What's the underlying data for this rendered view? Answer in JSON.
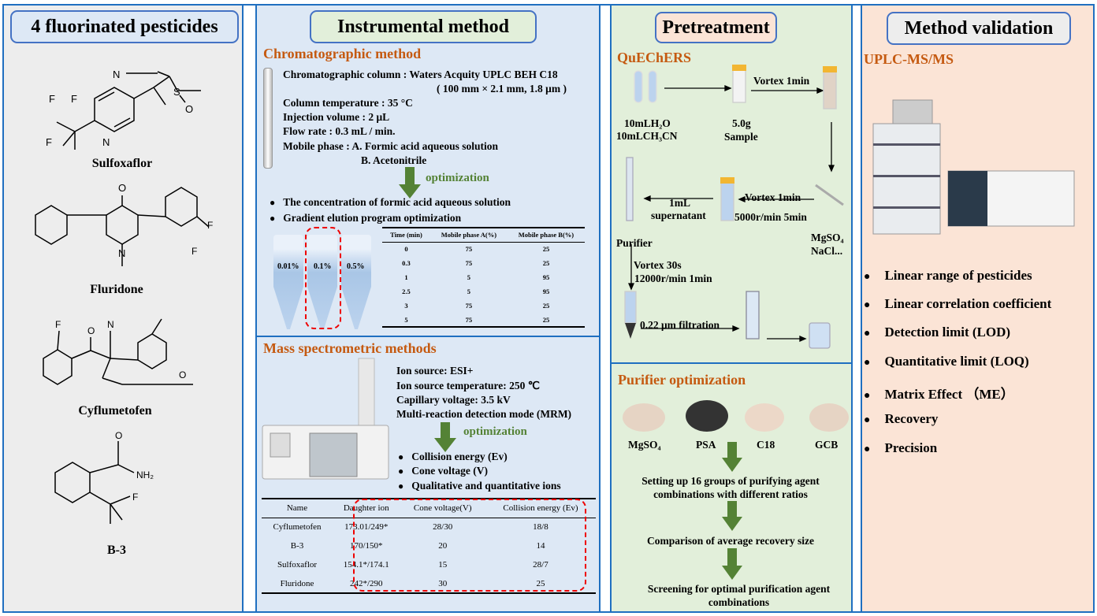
{
  "colors": {
    "frame": "#1f6fc0",
    "panel_pesticides": "#ededed",
    "panel_instrument": "#dde8f5",
    "panel_pretreatment": "#e2efda",
    "panel_validation": "#fbe4d6",
    "heading": "#c55a11",
    "optimization": "#548235",
    "highlight": "#e00000"
  },
  "pesticides": {
    "title": "4 fluorinated pesticides",
    "compounds": [
      {
        "name": "Sulfoxaflor"
      },
      {
        "name": "Fluridone"
      },
      {
        "name": "Cyflumetofen"
      },
      {
        "name": "B-3"
      }
    ]
  },
  "instrumental": {
    "title": "Instrumental method",
    "chromatographic": {
      "heading": "Chromatographic method",
      "lines": [
        "Chromatographic column : Waters Acquity UPLC BEH C18",
        "( 100 mm × 2.1 mm, 1.8 μm )",
        "Column temperature : 35 °C",
        "Injection volume : 2 μL",
        "Flow rate : 0.3 mL / min.",
        "Mobile phase : A. Formic acid aqueous solution",
        "B. Acetonitrile"
      ],
      "optimization": "optimization",
      "bullets": [
        "The concentration of formic acid aqueous solution",
        "Gradient elution program optimization"
      ],
      "tubes": [
        "0.01%",
        "0.1%",
        "0.5%"
      ],
      "gradient_table": {
        "headers": [
          "Time (min)",
          "Mobile phase A(%)",
          "Mobile phase B(%)"
        ],
        "rows": [
          [
            "0",
            "75",
            "25"
          ],
          [
            "0.3",
            "75",
            "25"
          ],
          [
            "1",
            "5",
            "95"
          ],
          [
            "2.5",
            "5",
            "95"
          ],
          [
            "3",
            "75",
            "25"
          ],
          [
            "5",
            "75",
            "25"
          ]
        ]
      }
    },
    "mass": {
      "heading": "Mass spectrometric methods",
      "lines": [
        "Ion source: ESI+",
        "Ion source temperature: 250 ℃",
        "Capillary voltage: 3.5 kV",
        "Multi-reaction detection mode (MRM)"
      ],
      "optimization": "optimization",
      "bullets": [
        "Collision energy (Ev)",
        "Cone voltage (V)",
        "Qualitative and quantitative ions"
      ],
      "table": {
        "headers": [
          "Name",
          "Daughter ion",
          "Cone voltage(V)",
          "Collision energy (Ev)"
        ],
        "rows": [
          [
            "Cyflumetofen",
            "173.01/249*",
            "28/30",
            "18/8"
          ],
          [
            "B-3",
            "170/150*",
            "20",
            "14"
          ],
          [
            "Sulfoxaflor",
            "154.1*/174.1",
            "15",
            "28/7"
          ],
          [
            "Fluridone",
            "242*/290",
            "30",
            "25"
          ]
        ]
      }
    }
  },
  "pretreatment": {
    "title": "Pretreatment",
    "quechers": {
      "heading": "QuEChERS",
      "solvent1": "10mLH₂O",
      "solvent2": "10mLCH₃CN",
      "sample1": "5.0g",
      "sample2": "Sample",
      "vortex1": "Vortex 1min",
      "vortex2": "Vortex 1min",
      "centrifuge": "5000r/min 5min",
      "salts1": "MgSO₄",
      "salts2": "NaCl...",
      "supernatant1": "1mL",
      "supernatant2": "supernatant",
      "purifier": "Purifier",
      "vortex3": "Vortex 30s",
      "centrifuge2": "12000r/min 1min",
      "filtration": "0.22 μm filtration"
    },
    "purifier": {
      "heading": "Purifier optimization",
      "agents": [
        "MgSO₄",
        "PSA",
        "C18",
        "GCB"
      ],
      "steps": [
        "Setting up 16 groups of purifying agent combinations with different ratios",
        "Comparison of average recovery size",
        "Screening for optimal purification agent combinations"
      ]
    }
  },
  "validation": {
    "title": "Method validation",
    "heading": "UPLC-MS/MS",
    "items": [
      "Linear range of pesticides",
      "Linear correlation coefficient",
      "Detection limit (LOD)",
      "Quantitative limit (LOQ)",
      "Matrix Effect （ME）",
      "Recovery",
      "Precision"
    ]
  }
}
